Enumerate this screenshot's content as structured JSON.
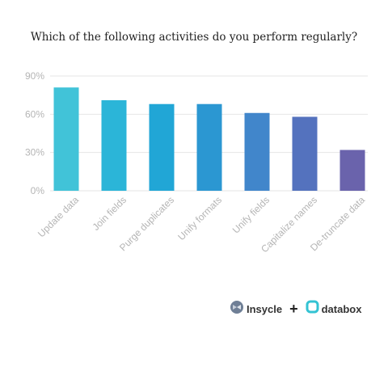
{
  "chart_data": {
    "type": "bar",
    "title": "Which of the following activities do you perform regularly?",
    "categories": [
      "Update data",
      "Join fields",
      "Purge duplicates",
      "Unify formats",
      "Unify fields",
      "Capitalize names",
      "De-truncate data"
    ],
    "values": [
      81,
      71,
      68,
      68,
      61,
      58,
      32
    ],
    "ylim": [
      0,
      90
    ],
    "yticks": [
      0,
      30,
      60,
      90
    ],
    "ytick_labels": [
      "0%",
      "30%",
      "60%",
      "90%"
    ],
    "grid": true,
    "bar_colors": [
      "#41c3d8",
      "#2bb5d8",
      "#21a6d6",
      "#2b97d2",
      "#4186cb",
      "#5472be",
      "#6a63ac"
    ]
  },
  "footer": {
    "brand_left": "Insycle",
    "separator": "+",
    "brand_right": "databox",
    "insycle_icon": "insycle-logo-icon",
    "databox_icon": "databox-logo-icon"
  }
}
